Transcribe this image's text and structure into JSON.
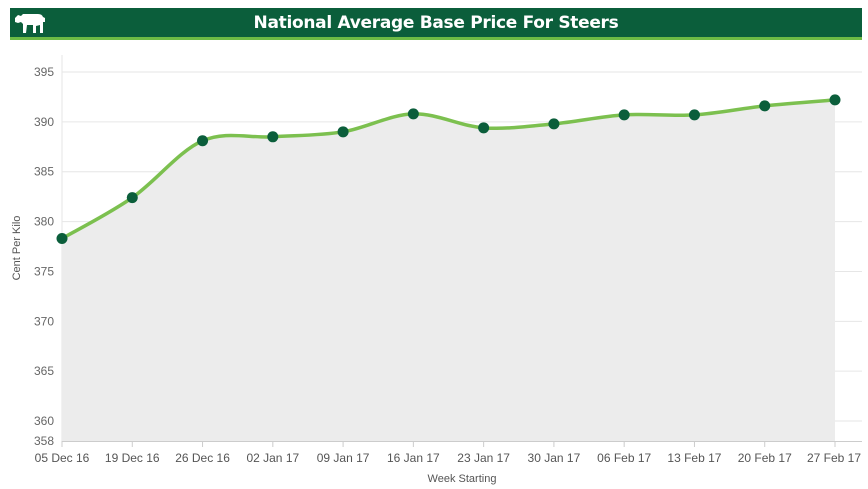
{
  "header": {
    "title": "National Average Base Price For Steers",
    "logo_icon": "cow-icon"
  },
  "colors": {
    "header_bg": "#0b5e3b",
    "header_accent": "#6dbb45",
    "line": "#7cc04f",
    "marker": "#0b5e3b",
    "area": "#ececec"
  },
  "chart_data": {
    "type": "area",
    "title": "National Average Base Price For Steers",
    "xlabel": "Week Starting",
    "ylabel": "Cent Per Kilo",
    "categories": [
      "05 Dec 16",
      "19 Dec 16",
      "26 Dec 16",
      "02 Jan 17",
      "09 Jan 17",
      "16 Jan 17",
      "23 Jan 17",
      "30 Jan 17",
      "06 Feb 17",
      "13 Feb 17",
      "20 Feb 17",
      "27 Feb 17"
    ],
    "series": [
      {
        "name": "Cent Per Kilo",
        "values": [
          378.3,
          382.4,
          388.1,
          388.5,
          389.0,
          390.8,
          389.4,
          389.8,
          390.7,
          390.7,
          391.6,
          392.2
        ]
      }
    ],
    "yticks": [
      358,
      360,
      365,
      370,
      375,
      380,
      385,
      390,
      395
    ],
    "ylim": [
      358,
      396
    ],
    "grid": true,
    "legend": "none"
  }
}
